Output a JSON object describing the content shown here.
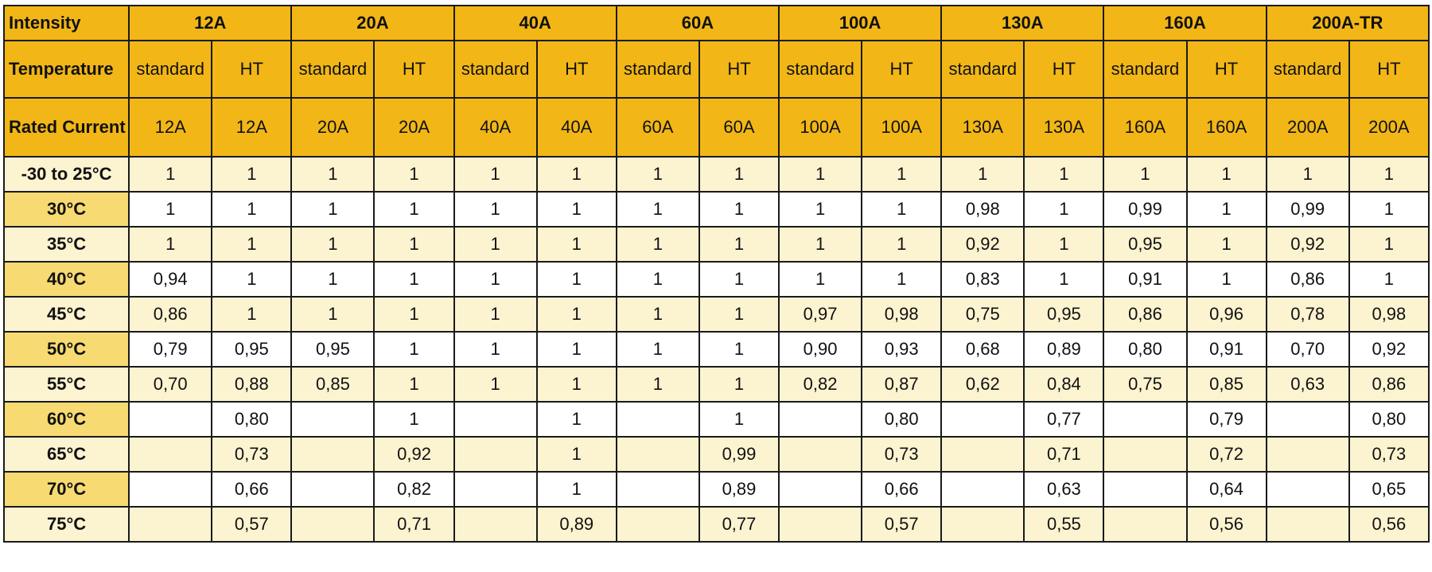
{
  "table": {
    "intensity_label": "Intensity",
    "temperature_label": "Temperature",
    "rated_current_label": "Rated Current",
    "groups": [
      "12A",
      "20A",
      "40A",
      "60A",
      "100A",
      "130A",
      "160A",
      "200A-TR"
    ],
    "sub_headers": [
      "standard",
      "HT",
      "standard",
      "HT",
      "standard",
      "HT",
      "standard",
      "HT",
      "standard",
      "HT",
      "standard",
      "HT",
      "standard",
      "HT",
      "standard",
      "HT"
    ],
    "rated_currents": [
      "12A",
      "12A",
      "20A",
      "20A",
      "40A",
      "40A",
      "60A",
      "60A",
      "100A",
      "100A",
      "130A",
      "130A",
      "160A",
      "160A",
      "200A",
      "200A"
    ],
    "rows": [
      {
        "temp": "-30 to 25°C",
        "values": [
          "1",
          "1",
          "1",
          "1",
          "1",
          "1",
          "1",
          "1",
          "1",
          "1",
          "1",
          "1",
          "1",
          "1",
          "1",
          "1"
        ]
      },
      {
        "temp": "30°C",
        "values": [
          "1",
          "1",
          "1",
          "1",
          "1",
          "1",
          "1",
          "1",
          "1",
          "1",
          "0,98",
          "1",
          "0,99",
          "1",
          "0,99",
          "1"
        ]
      },
      {
        "temp": "35°C",
        "values": [
          "1",
          "1",
          "1",
          "1",
          "1",
          "1",
          "1",
          "1",
          "1",
          "1",
          "0,92",
          "1",
          "0,95",
          "1",
          "0,92",
          "1"
        ]
      },
      {
        "temp": "40°C",
        "values": [
          "0,94",
          "1",
          "1",
          "1",
          "1",
          "1",
          "1",
          "1",
          "1",
          "1",
          "0,83",
          "1",
          "0,91",
          "1",
          "0,86",
          "1"
        ]
      },
      {
        "temp": "45°C",
        "values": [
          "0,86",
          "1",
          "1",
          "1",
          "1",
          "1",
          "1",
          "1",
          "0,97",
          "0,98",
          "0,75",
          "0,95",
          "0,86",
          "0,96",
          "0,78",
          "0,98"
        ]
      },
      {
        "temp": "50°C",
        "values": [
          "0,79",
          "0,95",
          "0,95",
          "1",
          "1",
          "1",
          "1",
          "1",
          "0,90",
          "0,93",
          "0,68",
          "0,89",
          "0,80",
          "0,91",
          "0,70",
          "0,92"
        ]
      },
      {
        "temp": "55°C",
        "values": [
          "0,70",
          "0,88",
          "0,85",
          "1",
          "1",
          "1",
          "1",
          "1",
          "0,82",
          "0,87",
          "0,62",
          "0,84",
          "0,75",
          "0,85",
          "0,63",
          "0,86"
        ]
      },
      {
        "temp": "60°C",
        "values": [
          "",
          "0,80",
          "",
          "1",
          "",
          "1",
          "",
          "1",
          "",
          "0,80",
          "",
          "0,77",
          "",
          "0,79",
          "",
          "0,80"
        ]
      },
      {
        "temp": "65°C",
        "values": [
          "",
          "0,73",
          "",
          "0,92",
          "",
          "1",
          "",
          "0,99",
          "",
          "0,73",
          "",
          "0,71",
          "",
          "0,72",
          "",
          "0,73"
        ]
      },
      {
        "temp": "70°C",
        "values": [
          "",
          "0,66",
          "",
          "0,82",
          "",
          "1",
          "",
          "0,89",
          "",
          "0,66",
          "",
          "0,63",
          "",
          "0,64",
          "",
          "0,65"
        ]
      },
      {
        "temp": "75°C",
        "values": [
          "",
          "0,57",
          "",
          "0,71",
          "",
          "0,89",
          "",
          "0,77",
          "",
          "0,57",
          "",
          "0,55",
          "",
          "0,56",
          "",
          "0,56"
        ]
      }
    ]
  }
}
